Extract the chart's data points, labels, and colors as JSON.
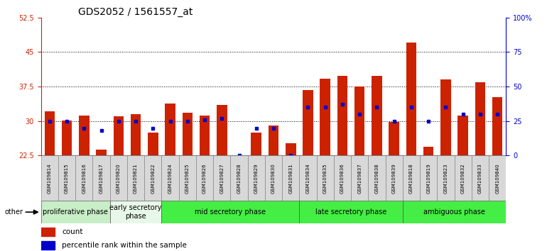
{
  "title": "GDS2052 / 1561557_at",
  "samples": [
    "GSM109814",
    "GSM109815",
    "GSM109816",
    "GSM109817",
    "GSM109820",
    "GSM109821",
    "GSM109822",
    "GSM109824",
    "GSM109825",
    "GSM109826",
    "GSM109827",
    "GSM109828",
    "GSM109829",
    "GSM109830",
    "GSM109831",
    "GSM109834",
    "GSM109835",
    "GSM109836",
    "GSM109837",
    "GSM109838",
    "GSM109839",
    "GSM109818",
    "GSM109819",
    "GSM109823",
    "GSM109832",
    "GSM109833",
    "GSM109840"
  ],
  "count_values": [
    32.2,
    30.2,
    31.2,
    23.8,
    31.0,
    31.5,
    27.5,
    33.8,
    31.8,
    31.2,
    33.5,
    22.2,
    27.5,
    29.0,
    25.2,
    36.8,
    39.2,
    39.8,
    37.5,
    39.8,
    29.8,
    47.0,
    24.5,
    39.0,
    31.2,
    38.5,
    35.2
  ],
  "percentile_pct": [
    25,
    25,
    20,
    18,
    25,
    25,
    20,
    25,
    25,
    26,
    27,
    0,
    20,
    20,
    0,
    35,
    35,
    37,
    30,
    35,
    25,
    35,
    25,
    35,
    30,
    30,
    30
  ],
  "ymin": 22.5,
  "ymax": 52.5,
  "yticks_left": [
    22.5,
    30,
    37.5,
    45,
    52.5
  ],
  "ytick_labels_left": [
    "22.5",
    "30",
    "37.5",
    "45",
    "52.5"
  ],
  "yticks_right": [
    0,
    25,
    50,
    75,
    100
  ],
  "ytick_labels_right": [
    "0",
    "25",
    "50",
    "75",
    "100%"
  ],
  "gridlines": [
    30,
    37.5,
    45
  ],
  "phases": [
    {
      "label": "proliferative phase",
      "start": 0,
      "end": 4,
      "color": "#c8eec8"
    },
    {
      "label": "early secretory\nphase",
      "start": 4,
      "end": 7,
      "color": "#e8f8e8"
    },
    {
      "label": "mid secretory phase",
      "start": 7,
      "end": 15,
      "color": "#44ee44"
    },
    {
      "label": "late secretory phase",
      "start": 15,
      "end": 21,
      "color": "#44ee44"
    },
    {
      "label": "ambiguous phase",
      "start": 21,
      "end": 27,
      "color": "#44ee44"
    }
  ],
  "bar_color": "#cc2200",
  "marker_color": "#0000cc",
  "left_axis_color": "#cc2200",
  "right_axis_color": "#0000cc",
  "title_fontsize": 10,
  "tick_fontsize": 7,
  "label_fontsize": 6,
  "phase_fontsize": 7
}
